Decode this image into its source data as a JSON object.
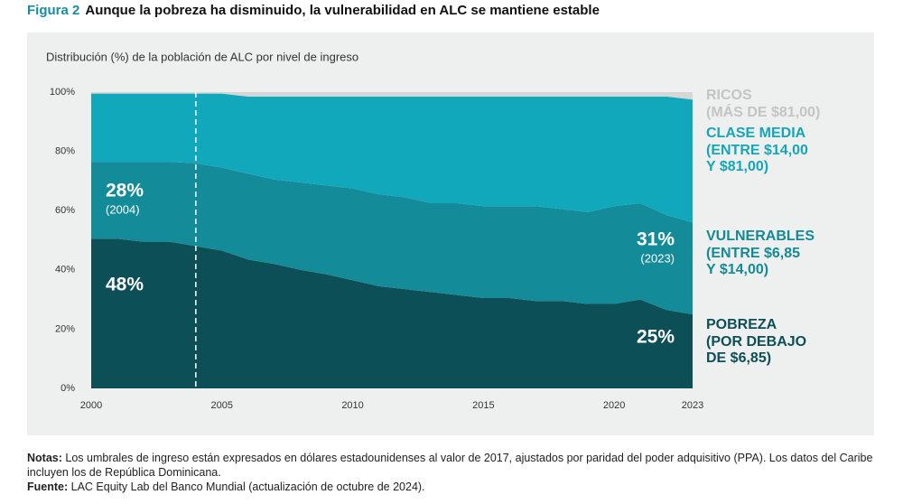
{
  "figure_label": "Figura 2",
  "title": "Aunque la pobreza ha disminuido, la vulnerabilidad en ALC se mantiene estable",
  "chart_data": {
    "type": "stacked_area",
    "subtitle": "Distribución (%) de la población de ALC por nivel de ingreso",
    "x": [
      2000,
      2001,
      2002,
      2003,
      2004,
      2005,
      2006,
      2007,
      2008,
      2009,
      2010,
      2011,
      2012,
      2013,
      2014,
      2015,
      2016,
      2017,
      2018,
      2019,
      2020,
      2021,
      2022,
      2023
    ],
    "xlim": [
      2000,
      2023
    ],
    "xticks": [
      2000,
      2005,
      2010,
      2015,
      2020,
      2023
    ],
    "ylim": [
      0,
      100
    ],
    "yticks": [
      {
        "value": 0,
        "label": "0%"
      },
      {
        "value": 20,
        "label": "20%"
      },
      {
        "value": 40,
        "label": "40%"
      },
      {
        "value": 60,
        "label": "60%"
      },
      {
        "value": 80,
        "label": "80%"
      },
      {
        "value": 100,
        "label": "100%"
      }
    ],
    "grid": false,
    "reference_line_x": 2004,
    "series": [
      {
        "name": "POBREZA\n(POR DEBAJO\nDE $6,85)",
        "color": "#0c4f57",
        "label_color": "#0d4f57",
        "values": [
          50.5,
          50.5,
          49.5,
          49.5,
          48,
          46.5,
          43.5,
          42,
          40,
          38.5,
          36.5,
          34.5,
          33.5,
          32.5,
          31.5,
          30.5,
          30.5,
          29.5,
          29.5,
          28.5,
          28.5,
          30,
          26.5,
          25
        ]
      },
      {
        "name": "VULNERABLES\n(ENTRE $6,85\nY $14,00)",
        "color": "#148b98",
        "label_color": "#138a96",
        "values": [
          26,
          26,
          27,
          27,
          28,
          28,
          29,
          28.5,
          29.5,
          30,
          31,
          31,
          31,
          30,
          31,
          31,
          31,
          32,
          31,
          31,
          33,
          32.5,
          32,
          31
        ]
      },
      {
        "name": "CLASE MEDIA\n(ENTRE $14,00\nY $81,00)",
        "color": "#12a8bc",
        "label_color": "#15a6b8",
        "values": [
          23,
          23,
          23,
          23,
          23.5,
          25,
          26,
          28,
          29,
          30,
          31,
          33,
          34,
          36,
          36,
          37,
          37,
          37,
          38,
          39,
          37,
          36,
          40,
          41.5
        ]
      },
      {
        "name": "RICOS\n(MÁS DE $81,00)",
        "color": "#d6d6d6",
        "label_color": "#c4c4c4",
        "values": [
          0.5,
          0.5,
          0.5,
          0.5,
          0.5,
          0.5,
          1.5,
          1.5,
          1.5,
          1.5,
          1.5,
          1.5,
          1.5,
          1.5,
          1.5,
          1.5,
          1.5,
          1.5,
          1.5,
          1.5,
          1.5,
          1.5,
          1.5,
          2.5
        ]
      }
    ],
    "annotations": [
      "28%",
      "(2004)",
      "48%",
      "31%",
      "(2023)",
      "25%"
    ]
  },
  "notes": {
    "label": "Notas:",
    "text": " Los umbrales de ingreso están expresados en dólares estadounidenses al valor de 2017, ajustados por paridad del poder adquisitivo (PPA). Los datos del Caribe incluyen los de República Dominicana."
  },
  "source": {
    "label": "Fuente:",
    "text": " LAC Equity Lab del Banco Mundial (actualización de octubre de 2024)."
  }
}
